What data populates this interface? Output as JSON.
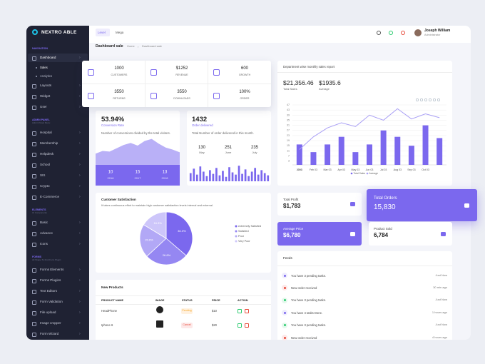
{
  "sidebar": {
    "brand": "NEXTRO ABLE",
    "sections": [
      {
        "title": "NAVIGATION",
        "items": [
          {
            "label": "Dashboard",
            "children": [
              "Sales",
              "Analytics"
            ]
          },
          {
            "label": "Layouts"
          },
          {
            "label": "Widget"
          },
          {
            "label": "User"
          }
        ]
      },
      {
        "title": "ADMIN PANEL",
        "subtitle": "Admin Panel Menu",
        "items": [
          {
            "label": "Hospital"
          },
          {
            "label": "Membership"
          },
          {
            "label": "Helpdesk"
          },
          {
            "label": "School"
          },
          {
            "label": "SIS"
          },
          {
            "label": "Crypto"
          },
          {
            "label": "E-Commerce"
          }
        ]
      },
      {
        "title": "ELEMENTS",
        "subtitle": "UI Components",
        "items": [
          {
            "label": "Basic"
          },
          {
            "label": "Advance"
          },
          {
            "label": "Icons"
          }
        ]
      },
      {
        "title": "FORMS",
        "subtitle": "All Shape To Find Form Plugin",
        "items": [
          {
            "label": "Forms Elements"
          },
          {
            "label": "Forms Plugins"
          },
          {
            "label": "Text Editors"
          },
          {
            "label": "Form Validation"
          },
          {
            "label": "File upload"
          },
          {
            "label": "Image cropper"
          },
          {
            "label": "Form Wizard"
          }
        ]
      }
    ]
  },
  "topbar": {
    "tabs": [
      "Level",
      "Mega"
    ],
    "user": {
      "name": "Joseph William",
      "role": "Administrator"
    }
  },
  "breadcrumb": {
    "title": "Dashboard sale",
    "links": [
      "Home",
      "Dashboard sale"
    ]
  },
  "stats": [
    {
      "value": "1000",
      "label": "CUSTOMERS"
    },
    {
      "value": "$1252",
      "label": "REVENUE"
    },
    {
      "value": "600",
      "label": "GROWTH"
    },
    {
      "value": "3550",
      "label": "RETURNS"
    },
    {
      "value": "3550",
      "label": "DOWNLOADS"
    },
    {
      "value": "100%",
      "label": "ORDER"
    }
  ],
  "conversion": {
    "value": "53.94%",
    "label": "Conversion Rate",
    "text": "Number of conversions divided by the total visitors.",
    "chart": {
      "type": "area",
      "values": [
        18,
        22,
        21,
        26,
        31,
        34,
        30,
        37,
        40,
        33,
        27,
        24,
        20
      ],
      "ylim": [
        0,
        45
      ],
      "color": "#b9b0f7"
    },
    "footer": [
      {
        "value": "10",
        "label": "2016"
      },
      {
        "value": "15",
        "label": "2017"
      },
      {
        "value": "13",
        "label": "2018"
      }
    ]
  },
  "orders": {
    "value": "1432",
    "label": "Order delivered",
    "text": "Total Number of order delivered in this month.",
    "stats": [
      {
        "value": "130",
        "label": "May"
      },
      {
        "value": "251",
        "label": "June"
      },
      {
        "value": "235",
        "label": "July"
      }
    ],
    "chart": {
      "type": "bar",
      "values": [
        22,
        34,
        18,
        40,
        26,
        14,
        30,
        20,
        36,
        16,
        28,
        12,
        38,
        24,
        18,
        42,
        20,
        32,
        14,
        26,
        36,
        18,
        30,
        22,
        16
      ],
      "ylim": [
        0,
        50
      ],
      "color": "#7b68ee"
    }
  },
  "satisfaction": {
    "title": "Customer Satisfaction",
    "text": "It takes continuous effort to maintain high customer satisfaction levels internal and external.",
    "chart": {
      "type": "pie",
      "categories": [
        "extremely Satisfied",
        "Satisfied",
        "Poor",
        "Very Poor"
      ],
      "values": [
        36.3,
        26.8,
        20.6,
        16.3
      ],
      "value_labels": [
        "36.3%",
        "26.8%",
        "20.6%",
        "16.3%"
      ],
      "colors": [
        "#7b68ee",
        "#9587f2",
        "#b2a8f6",
        "#cdc6fa"
      ]
    }
  },
  "products": {
    "title": "New Products",
    "columns": [
      "PRODUCT NAME",
      "IMAGE",
      "STATUS",
      "PRICE",
      "ACTION"
    ],
    "rows": [
      [
        "HeadPhone",
        "Pending",
        "$10"
      ],
      [
        "Iphone 6",
        "Cancel",
        "$20"
      ]
    ]
  },
  "department": {
    "title": "Department wise monthly sales report",
    "totals": [
      {
        "value": "$21,356.46",
        "label": "Total Sales"
      },
      {
        "value": "$1935.6",
        "label": "Average"
      }
    ],
    "chart": {
      "type": "bar",
      "categories": [
        "2003",
        "Feb 03",
        "Mar 03",
        "Apr 03",
        "May 03",
        "Jun 03",
        "Jul 03",
        "Aug 03",
        "Sep 03",
        "Oct 03",
        null
      ],
      "series": [
        {
          "name": "Total Sales",
          "color": "#7b68ee",
          "values": [
            16,
            10,
            16,
            22,
            10,
            16,
            27,
            22,
            15,
            31,
            21
          ]
        },
        {
          "name": "Average",
          "color": "#a99ff5",
          "values": [
            12,
            22,
            29,
            33,
            30,
            39,
            35,
            44,
            36,
            40,
            37
          ]
        }
      ],
      "ylim": [
        0,
        47
      ],
      "yticks": [
        3,
        7,
        11,
        15,
        19,
        23,
        27,
        31,
        35,
        39,
        43,
        47
      ],
      "grid": true
    }
  },
  "kpis": [
    {
      "label": "Total Profit",
      "value": "$1,783"
    },
    {
      "label": "Total Orders",
      "value": "15,830"
    },
    {
      "label": "Average Price",
      "value": "$6,780"
    },
    {
      "label": "Product Sold",
      "value": "6,784"
    }
  ],
  "feeds": {
    "title": "Feeds",
    "items": [
      {
        "text": "You have 3 pending tasks.",
        "time": "Just Now"
      },
      {
        "text": "New order received",
        "time": "30 min ago"
      },
      {
        "text": "You have 3 pending tasks.",
        "time": "Just Now"
      },
      {
        "text": "You have 4 tasks Done.",
        "time": "1 hours ago"
      },
      {
        "text": "You have 3 pending tasks.",
        "time": "Just Now"
      },
      {
        "text": "New order received",
        "time": "4 hours ago"
      }
    ]
  }
}
